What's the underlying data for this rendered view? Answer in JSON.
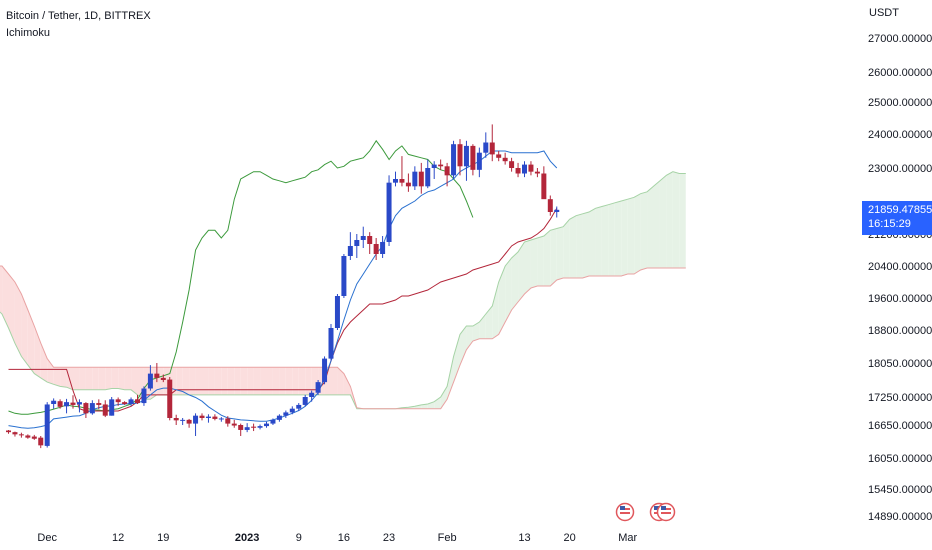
{
  "legend": {
    "symbol": "Bitcoin / Tether, 1D, BITTREX",
    "indicator": "Ichimoku"
  },
  "price_axis": {
    "currency": "USDT"
  },
  "last_price": {
    "value": "21859.47855",
    "countdown": "16:15:29"
  },
  "colors": {
    "bull": "#2a49c8",
    "bear": "#b3263a",
    "conversion_line": "#2a71d0",
    "base_line": "#b3263a",
    "lagging_span": "#3c9a3c",
    "cloud_bull_fill": "#e6f2e6",
    "cloud_bear_fill": "#fbdede",
    "price_tag": "#2962ff",
    "event_marker": "#e0575c"
  },
  "chart_data": {
    "type": "candlestick",
    "title": "Bitcoin / Tether, 1D, BITTREX",
    "indicator": "Ichimoku",
    "ylabel": "USDT",
    "ylim": [
      14700,
      27800
    ],
    "log_scale": true,
    "grid": false,
    "x_tick_labels": [
      "Dec",
      "12",
      "19",
      "2023",
      "9",
      "16",
      "23",
      "Feb",
      "13",
      "20",
      "Mar"
    ],
    "y_tick_labels": [
      "27000.00000",
      "26000.00000",
      "25000.00000",
      "24000.00000",
      "23000.00000",
      "21200.00000",
      "20400.00000",
      "19600.00000",
      "18800.00000",
      "18050.00000",
      "17250.00000",
      "16650.00000",
      "16050.00000",
      "15450.00000",
      "14890.00000"
    ],
    "y_ticks": [
      27000,
      26000,
      25000,
      24000,
      23000,
      21200,
      20400,
      19600,
      18800,
      18050,
      17250,
      16650,
      16050,
      15450,
      14890
    ],
    "x_tick_dates": [
      "2022-12-01",
      "2022-12-12",
      "2022-12-19",
      "2023-01-01",
      "2023-01-09",
      "2023-01-16",
      "2023-01-23",
      "2023-02-01",
      "2023-02-13",
      "2023-02-20",
      "2023-03-01"
    ],
    "start_date": "2022-11-25",
    "candles": [
      [
        16550,
        16560,
        16490,
        16520
      ],
      [
        16520,
        16530,
        16440,
        16480
      ],
      [
        16480,
        16510,
        16420,
        16470
      ],
      [
        16460,
        16480,
        16400,
        16420
      ],
      [
        16440,
        16470,
        16380,
        16400
      ],
      [
        16420,
        16450,
        16230,
        16280
      ],
      [
        16270,
        17140,
        16240,
        17090
      ],
      [
        17100,
        17220,
        17000,
        17170
      ],
      [
        17160,
        17200,
        17000,
        17040
      ],
      [
        17050,
        17210,
        16900,
        17140
      ],
      [
        17130,
        17290,
        17000,
        17080
      ],
      [
        17090,
        17200,
        16920,
        17140
      ],
      [
        17120,
        17140,
        16800,
        16900
      ],
      [
        16900,
        17180,
        16870,
        17120
      ],
      [
        17120,
        17200,
        16990,
        17080
      ],
      [
        17090,
        17180,
        16820,
        16850
      ],
      [
        16850,
        17250,
        16850,
        17200
      ],
      [
        17200,
        17240,
        17060,
        17140
      ],
      [
        17140,
        17160,
        17080,
        17100
      ],
      [
        17100,
        17240,
        17060,
        17200
      ],
      [
        17200,
        17300,
        17100,
        17120
      ],
      [
        17120,
        17500,
        17060,
        17450
      ],
      [
        17450,
        18000,
        17400,
        17800
      ],
      [
        17800,
        18050,
        17600,
        17700
      ],
      [
        17700,
        17780,
        17600,
        17650
      ],
      [
        17660,
        17720,
        16750,
        16800
      ],
      [
        16800,
        16870,
        16650,
        16750
      ],
      [
        16740,
        16800,
        16650,
        16760
      ],
      [
        16760,
        16780,
        16600,
        16680
      ],
      [
        16680,
        16900,
        16450,
        16850
      ],
      [
        16850,
        16900,
        16750,
        16800
      ],
      [
        16800,
        16880,
        16700,
        16830
      ],
      [
        16830,
        16880,
        16750,
        16780
      ],
      [
        16780,
        16820,
        16720,
        16790
      ],
      [
        16790,
        16840,
        16620,
        16680
      ],
      [
        16680,
        16760,
        16600,
        16640
      ],
      [
        16650,
        16680,
        16450,
        16560
      ],
      [
        16560,
        16690,
        16520,
        16610
      ],
      [
        16620,
        16680,
        16540,
        16600
      ],
      [
        16600,
        16660,
        16570,
        16630
      ],
      [
        16630,
        16720,
        16600,
        16680
      ],
      [
        16680,
        16790,
        16650,
        16760
      ],
      [
        16760,
        16880,
        16720,
        16850
      ],
      [
        16850,
        16960,
        16800,
        16920
      ],
      [
        16920,
        17050,
        16880,
        17000
      ],
      [
        17000,
        17120,
        16950,
        17080
      ],
      [
        17080,
        17300,
        17050,
        17250
      ],
      [
        17250,
        17400,
        17150,
        17350
      ],
      [
        17350,
        17650,
        17300,
        17600
      ],
      [
        17600,
        18200,
        17550,
        18150
      ],
      [
        18150,
        18950,
        18100,
        18850
      ],
      [
        18850,
        19700,
        18800,
        19650
      ],
      [
        19650,
        20700,
        19600,
        20650
      ],
      [
        20650,
        21250,
        20550,
        20900
      ],
      [
        20900,
        21200,
        20600,
        21050
      ],
      [
        21050,
        21400,
        20850,
        21150
      ],
      [
        21150,
        21250,
        20700,
        20950
      ],
      [
        20950,
        21100,
        20550,
        20700
      ],
      [
        20700,
        21150,
        20600,
        21000
      ],
      [
        21000,
        22800,
        20900,
        22600
      ],
      [
        22600,
        22900,
        22500,
        22700
      ],
      [
        22700,
        23350,
        22500,
        22600
      ],
      [
        22600,
        22850,
        22350,
        22500
      ],
      [
        22500,
        23050,
        22400,
        22900
      ],
      [
        22900,
        23150,
        22300,
        22500
      ],
      [
        22500,
        23250,
        22450,
        23000
      ],
      [
        23000,
        23200,
        22700,
        23100
      ],
      [
        23100,
        23250,
        22950,
        23050
      ],
      [
        23050,
        23150,
        22500,
        22800
      ],
      [
        22800,
        23800,
        22700,
        23700
      ],
      [
        23700,
        23850,
        22800,
        23050
      ],
      [
        23050,
        23800,
        22650,
        23650
      ],
      [
        23650,
        23700,
        22800,
        22950
      ],
      [
        22950,
        23600,
        22750,
        23450
      ],
      [
        23450,
        24050,
        23300,
        23750
      ],
      [
        23750,
        24300,
        23200,
        23400
      ],
      [
        23400,
        23500,
        23200,
        23300
      ],
      [
        23300,
        23450,
        23100,
        23200
      ],
      [
        23200,
        23300,
        22900,
        23000
      ],
      [
        23000,
        23150,
        22750,
        22850
      ],
      [
        22850,
        23200,
        22750,
        23100
      ],
      [
        23100,
        23200,
        22800,
        22900
      ],
      [
        22900,
        23000,
        22750,
        22850
      ],
      [
        22850,
        23050,
        22200,
        22150
      ],
      [
        22150,
        22250,
        21700,
        21800
      ],
      [
        21800,
        21950,
        21650,
        21860
      ]
    ],
    "series": [
      {
        "name": "Conversion Line",
        "values": [
          16640,
          16620,
          16600,
          16590,
          16600,
          16620,
          16650,
          16780,
          16800,
          16820,
          16840,
          16850,
          16900,
          16980,
          17020,
          17050,
          17060,
          17090,
          17100,
          17110,
          17120,
          17180,
          17300,
          17420,
          17460,
          17460,
          17420,
          17380,
          17300,
          17240,
          17160,
          17040,
          16950,
          16860,
          16800,
          16780,
          16760,
          16750,
          16740,
          16730,
          16730,
          16760,
          16800,
          16850,
          16900,
          16960,
          17050,
          17180,
          17350,
          17700,
          18100,
          18550,
          19050,
          19550,
          19950,
          20200,
          20450,
          20700,
          20900,
          21350,
          21700,
          21900,
          22000,
          22100,
          22250,
          22350,
          22400,
          22500,
          22600,
          22700,
          22900,
          23000,
          23100,
          23200,
          23350,
          23500,
          23500,
          23500,
          23450,
          23450,
          23450,
          23450,
          23450,
          23500,
          23200,
          23000
        ]
      },
      {
        "name": "Base Line",
        "values": [
          17900,
          17900,
          17900,
          17900,
          17900,
          17900,
          17900,
          17900,
          17900,
          17900,
          17400,
          17000,
          16950,
          16950,
          16950,
          16950,
          16950,
          16950,
          17000,
          17050,
          17150,
          17300,
          17300,
          17300,
          17300,
          17300,
          17420,
          17420,
          17420,
          17420,
          17420,
          17420,
          17420,
          17420,
          17420,
          17420,
          17420,
          17420,
          17420,
          17420,
          17420,
          17420,
          17420,
          17420,
          17420,
          17420,
          17420,
          17420,
          17420,
          17600,
          18100,
          18500,
          18800,
          19000,
          19150,
          19300,
          19450,
          19450,
          19450,
          19500,
          19550,
          19650,
          19650,
          19700,
          19750,
          19800,
          19900,
          20000,
          20050,
          20100,
          20150,
          20200,
          20300,
          20350,
          20400,
          20450,
          20500,
          20700,
          20900,
          21000,
          21050,
          21100,
          21200,
          21350,
          21600,
          21900
        ]
      },
      {
        "name": "Lagging Span",
        "values": [
          16950,
          16900,
          16880,
          16880,
          16900,
          16920,
          16950,
          16990,
          17030,
          17080,
          17050,
          17040,
          17010,
          16980,
          16970,
          16950,
          16980,
          17000,
          17050,
          17100,
          17200,
          17450,
          17650,
          17700,
          17750,
          17800,
          18300,
          19000,
          19800,
          20800,
          21100,
          21300,
          21300,
          21100,
          21300,
          22150,
          22700,
          22800,
          22900,
          22900,
          22800,
          22700,
          22650,
          22600,
          22650,
          22700,
          22750,
          22900,
          22950,
          23100,
          23200,
          23000,
          23050,
          23200,
          23250,
          23300,
          23500,
          23800,
          23550,
          23250,
          23500,
          23650,
          23400,
          23350,
          23300,
          23250,
          23050,
          22950,
          22900,
          22700,
          22500,
          22100,
          21650
        ]
      },
      {
        "name": "Leading Span A",
        "values": [
          20350,
          20350,
          20350,
          20100,
          19900,
          19750,
          19600,
          19500,
          19350,
          19200,
          18850,
          18500,
          18200,
          18000,
          17800,
          17700,
          17600,
          17550,
          17500,
          17480,
          17420,
          17420,
          17420,
          17420,
          17420,
          17420,
          17450,
          17450,
          17420,
          17420,
          17300,
          17200,
          17200,
          17300,
          17300,
          17300,
          17300,
          17300,
          17300,
          17300,
          17300,
          17300,
          17300,
          17300,
          17300,
          17300,
          17300,
          17300,
          17300,
          17300,
          17300,
          17300,
          17300,
          17300,
          17300,
          17300,
          17300,
          17300,
          17300,
          17300,
          17300,
          17300,
          17300,
          17300,
          17000,
          17000,
          17000,
          17000,
          17000,
          17000,
          17000,
          17020,
          17030,
          17050,
          17080,
          17100,
          17150,
          17250,
          17500,
          18200,
          18700,
          18900,
          18900,
          19000,
          19200,
          19400,
          20000,
          20400,
          20600,
          20750,
          21000,
          21050,
          21100,
          21150,
          21300,
          21350,
          21400,
          21600,
          21700,
          21750,
          21800,
          21900,
          21950,
          22000,
          22050,
          22100,
          22150,
          22200,
          22300,
          22350,
          22500,
          22650,
          22800,
          22900,
          22850,
          22850
        ]
      },
      {
        "name": "Leading Span B",
        "values": [
          20400,
          20400,
          20400,
          20400,
          20400,
          20400,
          20400,
          20400,
          20400,
          20400,
          20200,
          20000,
          19700,
          19300,
          18900,
          18500,
          18150,
          17950,
          17950,
          17950,
          17950,
          17950,
          17950,
          17950,
          17950,
          17950,
          17950,
          17950,
          17950,
          17950,
          17950,
          17950,
          17950,
          17950,
          17950,
          17950,
          17950,
          17950,
          17950,
          17950,
          17950,
          17950,
          17950,
          17950,
          17950,
          17950,
          17950,
          17950,
          17950,
          17950,
          17950,
          17950,
          17950,
          17950,
          17950,
          17950,
          17950,
          17950,
          17950,
          17950,
          17950,
          17950,
          17800,
          17500,
          17020,
          17000,
          17000,
          17000,
          17000,
          17000,
          17000,
          17000,
          17000,
          17000,
          17000,
          17000,
          17000,
          17000,
          17200,
          17600,
          18000,
          18350,
          18550,
          18600,
          18600,
          18600,
          18700,
          19000,
          19300,
          19500,
          19700,
          19850,
          19900,
          19900,
          19900,
          20050,
          20100,
          20100,
          20100,
          20100,
          20150,
          20150,
          20150,
          20150,
          20150,
          20150,
          20200,
          20200,
          20300,
          20350,
          20350,
          20350,
          20350,
          20350,
          20350,
          20350
        ]
      }
    ]
  }
}
